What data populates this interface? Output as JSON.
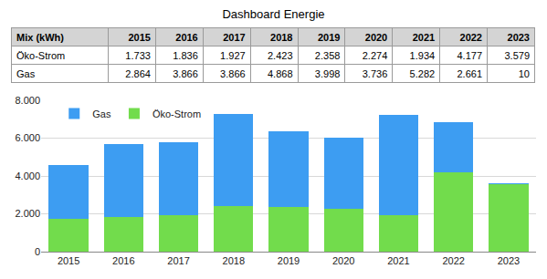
{
  "title": "Dashboard Energie",
  "table": {
    "header": [
      "Mix (kWh)",
      "2015",
      "2016",
      "2017",
      "2018",
      "2019",
      "2020",
      "2021",
      "2022",
      "2023"
    ],
    "rows": [
      [
        "Öko-Strom",
        "1.733",
        "1.836",
        "1.927",
        "2.423",
        "2.358",
        "2.274",
        "1.934",
        "4.177",
        "3.579"
      ],
      [
        "Gas",
        "2.864",
        "3.866",
        "3.866",
        "4.868",
        "3.998",
        "3.736",
        "5.282",
        "2.661",
        "10"
      ]
    ]
  },
  "chart_data": {
    "type": "bar",
    "stacked": true,
    "categories": [
      "2015",
      "2016",
      "2017",
      "2018",
      "2019",
      "2020",
      "2021",
      "2022",
      "2023"
    ],
    "series": [
      {
        "name": "Öko-Strom",
        "color": "#72dc4c",
        "values": [
          1733,
          1836,
          1927,
          2423,
          2358,
          2274,
          1934,
          4177,
          3579
        ]
      },
      {
        "name": "Gas",
        "color": "#3d9df2",
        "values": [
          2864,
          3866,
          3866,
          4868,
          3998,
          3736,
          5282,
          2661,
          10
        ]
      }
    ],
    "ylim": [
      0,
      8000
    ],
    "yticks": [
      0,
      {
        "value": 2000,
        "label": "2.000"
      },
      {
        "value": 4000,
        "label": "4.000"
      },
      {
        "value": 6000,
        "label": "6.000"
      },
      {
        "value": 8000,
        "label": "8.000"
      }
    ],
    "grid": true,
    "legend": "top-left"
  }
}
